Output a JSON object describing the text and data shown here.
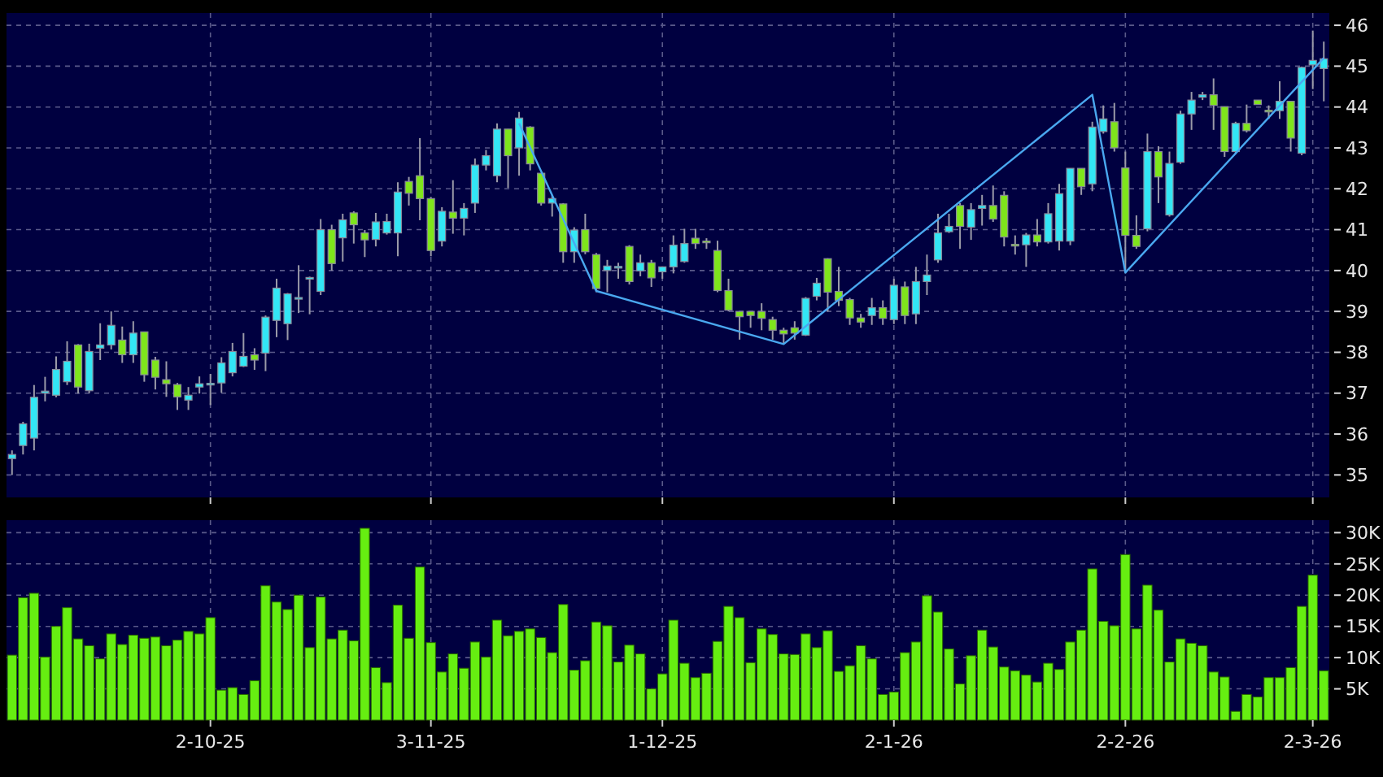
{
  "chart_data": [
    {
      "type": "candlestick",
      "categories": [
        null,
        null,
        null,
        null,
        null,
        null,
        null,
        null,
        null,
        null,
        null,
        null,
        null,
        null,
        null,
        null,
        null,
        null,
        null,
        null,
        null,
        null,
        null,
        null,
        null,
        null,
        null,
        null,
        null,
        null,
        null,
        null,
        null,
        null,
        null,
        null,
        null,
        null,
        null,
        null,
        null,
        null,
        null,
        null,
        null,
        null,
        null,
        null,
        null,
        null,
        null,
        null,
        null,
        null,
        null,
        null,
        null,
        null,
        null,
        null,
        null,
        null,
        null,
        null,
        null,
        null,
        null,
        null,
        null,
        null,
        null,
        null,
        null,
        null,
        null,
        null,
        null,
        null,
        null,
        null,
        null,
        null,
        null,
        null,
        null,
        null,
        null,
        null,
        null,
        null,
        null,
        null,
        null,
        null,
        null,
        null,
        null,
        null,
        null,
        null,
        null,
        null,
        null,
        null,
        null,
        null,
        null,
        null,
        null,
        null,
        null,
        null,
        null,
        null,
        null,
        null,
        null,
        null,
        null,
        null
      ],
      "ohlc": [
        [
          35.4,
          35.6,
          35.0,
          35.5
        ],
        [
          35.72,
          36.3,
          35.5,
          36.25
        ],
        [
          35.9,
          37.2,
          35.6,
          36.9
        ],
        [
          37.0,
          37.4,
          36.8,
          37.05
        ],
        [
          36.95,
          37.9,
          36.9,
          37.58
        ],
        [
          37.28,
          38.27,
          37.2,
          37.78
        ],
        [
          38.18,
          38.2,
          36.99,
          37.15
        ],
        [
          37.06,
          38.21,
          37.0,
          38.02
        ],
        [
          38.1,
          38.71,
          37.81,
          38.18
        ],
        [
          38.18,
          39.0,
          38.07,
          38.66
        ],
        [
          38.3,
          38.63,
          37.74,
          37.94
        ],
        [
          37.94,
          38.76,
          37.74,
          38.47
        ],
        [
          38.5,
          38.5,
          37.28,
          37.45
        ],
        [
          37.81,
          37.89,
          37.09,
          37.39
        ],
        [
          37.33,
          37.78,
          36.91,
          37.23
        ],
        [
          37.21,
          37.25,
          36.59,
          36.91
        ],
        [
          36.83,
          37.15,
          36.59,
          36.95
        ],
        [
          37.15,
          37.41,
          36.99,
          37.23
        ],
        [
          37.23,
          37.47,
          36.71,
          37.24
        ],
        [
          37.25,
          37.88,
          37.01,
          37.74
        ],
        [
          37.5,
          38.23,
          37.41,
          38.02
        ],
        [
          37.66,
          38.47,
          37.64,
          37.9
        ],
        [
          37.94,
          38.1,
          37.57,
          37.81
        ],
        [
          37.98,
          38.9,
          37.54,
          38.86
        ],
        [
          38.78,
          39.8,
          38.37,
          39.57
        ],
        [
          38.7,
          39.45,
          38.3,
          39.43
        ],
        [
          39.3,
          40.13,
          38.96,
          39.34
        ],
        [
          39.82,
          39.85,
          38.93,
          39.83
        ],
        [
          39.49,
          41.26,
          39.4,
          41.0
        ],
        [
          41.0,
          41.12,
          40.0,
          40.17
        ],
        [
          40.8,
          41.39,
          40.22,
          41.24
        ],
        [
          41.41,
          41.45,
          40.66,
          41.12
        ],
        [
          40.92,
          40.99,
          40.33,
          40.75
        ],
        [
          40.76,
          41.41,
          40.59,
          41.19
        ],
        [
          40.92,
          41.39,
          40.88,
          41.2
        ],
        [
          40.92,
          42.16,
          40.35,
          41.92
        ],
        [
          42.18,
          42.29,
          41.59,
          41.89
        ],
        [
          42.32,
          43.24,
          41.23,
          41.76
        ],
        [
          41.76,
          41.8,
          40.35,
          40.49
        ],
        [
          40.72,
          41.55,
          40.59,
          41.45
        ],
        [
          41.43,
          42.21,
          40.9,
          41.28
        ],
        [
          41.28,
          41.65,
          40.86,
          41.52
        ],
        [
          41.65,
          42.74,
          41.41,
          42.58
        ],
        [
          42.58,
          42.95,
          42.45,
          42.81
        ],
        [
          42.32,
          43.6,
          42.16,
          43.46
        ],
        [
          43.46,
          43.46,
          42.02,
          42.81
        ],
        [
          43.0,
          43.88,
          42.32,
          43.73
        ],
        [
          43.51,
          43.53,
          42.45,
          42.61
        ],
        [
          42.38,
          42.38,
          41.59,
          41.65
        ],
        [
          41.65,
          41.85,
          41.32,
          41.76
        ],
        [
          41.63,
          41.65,
          40.19,
          40.46
        ],
        [
          40.46,
          41.06,
          40.19,
          40.99
        ],
        [
          41.0,
          41.39,
          40.4,
          40.46
        ],
        [
          40.39,
          40.43,
          39.47,
          39.56
        ],
        [
          40.0,
          40.26,
          39.47,
          40.11
        ],
        [
          40.09,
          40.19,
          39.8,
          40.1
        ],
        [
          40.59,
          40.62,
          39.66,
          39.73
        ],
        [
          39.99,
          40.39,
          39.86,
          40.19
        ],
        [
          40.19,
          40.26,
          39.6,
          39.82
        ],
        [
          39.97,
          40.1,
          39.8,
          40.09
        ],
        [
          40.09,
          40.86,
          39.93,
          40.62
        ],
        [
          40.22,
          41.02,
          40.19,
          40.66
        ],
        [
          40.79,
          41.02,
          40.53,
          40.66
        ],
        [
          40.72,
          40.79,
          40.53,
          40.71
        ],
        [
          40.49,
          40.73,
          39.47,
          39.51
        ],
        [
          39.51,
          39.8,
          39.0,
          39.03
        ],
        [
          39.0,
          39.0,
          38.31,
          38.87
        ],
        [
          39.0,
          39.0,
          38.6,
          38.9
        ],
        [
          39.0,
          39.2,
          38.54,
          38.83
        ],
        [
          38.8,
          38.87,
          38.31,
          38.54
        ],
        [
          38.54,
          38.6,
          38.2,
          38.45
        ],
        [
          38.6,
          38.76,
          38.31,
          38.47
        ],
        [
          38.42,
          39.35,
          38.4,
          39.32
        ],
        [
          39.37,
          39.82,
          39.27,
          39.69
        ],
        [
          40.29,
          40.3,
          39.0,
          39.47
        ],
        [
          39.49,
          40.09,
          39.13,
          39.27
        ],
        [
          39.29,
          39.33,
          38.67,
          38.84
        ],
        [
          38.84,
          38.94,
          38.6,
          38.74
        ],
        [
          38.9,
          39.33,
          38.67,
          39.09
        ],
        [
          39.09,
          39.27,
          38.67,
          38.83
        ],
        [
          38.8,
          39.8,
          38.69,
          39.64
        ],
        [
          39.6,
          39.73,
          38.69,
          38.9
        ],
        [
          38.94,
          40.09,
          38.69,
          39.73
        ],
        [
          39.73,
          40.39,
          39.4,
          39.89
        ],
        [
          40.26,
          41.39,
          40.19,
          40.92
        ],
        [
          40.95,
          41.39,
          40.92,
          41.08
        ],
        [
          41.59,
          41.65,
          40.53,
          41.08
        ],
        [
          41.06,
          41.65,
          40.75,
          41.49
        ],
        [
          41.52,
          41.85,
          41.1,
          41.59
        ],
        [
          41.59,
          42.08,
          41.19,
          41.26
        ],
        [
          41.84,
          41.94,
          40.59,
          40.82
        ],
        [
          40.64,
          40.86,
          40.39,
          40.63
        ],
        [
          40.63,
          40.92,
          40.09,
          40.87
        ],
        [
          40.87,
          41.26,
          40.59,
          40.7
        ],
        [
          40.7,
          41.65,
          40.66,
          41.39
        ],
        [
          40.72,
          42.12,
          40.49,
          41.88
        ],
        [
          40.72,
          42.5,
          40.62,
          42.5
        ],
        [
          42.5,
          42.5,
          41.85,
          42.05
        ],
        [
          42.12,
          43.64,
          41.94,
          43.51
        ],
        [
          43.4,
          44.04,
          43.35,
          43.71
        ],
        [
          43.64,
          44.1,
          42.91,
          43.0
        ],
        [
          42.51,
          42.91,
          39.93,
          40.86
        ],
        [
          40.86,
          41.35,
          40.53,
          40.59
        ],
        [
          41.02,
          43.35,
          40.96,
          42.91
        ],
        [
          42.91,
          43.04,
          41.65,
          42.29
        ],
        [
          41.36,
          42.91,
          41.32,
          42.62
        ],
        [
          42.65,
          43.91,
          42.61,
          43.83
        ],
        [
          43.83,
          44.37,
          43.44,
          44.17
        ],
        [
          44.24,
          44.37,
          44.17,
          44.3
        ],
        [
          44.3,
          44.7,
          43.44,
          44.04
        ],
        [
          44.01,
          44.01,
          42.78,
          42.91
        ],
        [
          42.91,
          43.64,
          42.85,
          43.6
        ],
        [
          43.6,
          44.06,
          43.38,
          43.42
        ],
        [
          44.17,
          44.17,
          44.06,
          44.06
        ],
        [
          43.92,
          44.04,
          43.71,
          43.91
        ],
        [
          43.91,
          44.63,
          43.71,
          44.14
        ],
        [
          44.14,
          44.14,
          42.91,
          43.24
        ],
        [
          42.87,
          44.99,
          42.82,
          44.97
        ],
        [
          45.03,
          45.87,
          44.44,
          45.14
        ],
        [
          44.94,
          45.6,
          44.14,
          45.18
        ]
      ],
      "colors": [
        "#33e6f5",
        "#33e6f5",
        "#33e6f5",
        "#33e6f5",
        "#33e6f5",
        "#33e6f5",
        "#7fe51c",
        "#33e6f5",
        "#33e6f5",
        "#33e6f5",
        "#7fe51c",
        "#33e6f5",
        "#7fe51c",
        "#7fe51c",
        "#7fe51c",
        "#7fe51c",
        "#33e6f5",
        "#33e6f5",
        "#33e6f5",
        "#33e6f5",
        "#33e6f5",
        "#33e6f5",
        "#7fe51c",
        "#33e6f5",
        "#33e6f5",
        "#33e6f5",
        "#33e6f5",
        "#33e6f5",
        "#33e6f5",
        "#7fe51c",
        "#33e6f5",
        "#7fe51c",
        "#7fe51c",
        "#33e6f5",
        "#33e6f5",
        "#33e6f5",
        "#7fe51c",
        "#7fe51c",
        "#7fe51c",
        "#33e6f5",
        "#7fe51c",
        "#33e6f5",
        "#33e6f5",
        "#33e6f5",
        "#33e6f5",
        "#7fe51c",
        "#33e6f5",
        "#7fe51c",
        "#7fe51c",
        "#33e6f5",
        "#7fe51c",
        "#33e6f5",
        "#7fe51c",
        "#7fe51c",
        "#33e6f5",
        "#33e6f5",
        "#7fe51c",
        "#33e6f5",
        "#7fe51c",
        "#33e6f5",
        "#33e6f5",
        "#33e6f5",
        "#7fe51c",
        "#7fe51c",
        "#7fe51c",
        "#7fe51c",
        "#7fe51c",
        "#7fe51c",
        "#7fe51c",
        "#7fe51c",
        "#7fe51c",
        "#7fe51c",
        "#33e6f5",
        "#33e6f5",
        "#7fe51c",
        "#7fe51c",
        "#7fe51c",
        "#7fe51c",
        "#33e6f5",
        "#7fe51c",
        "#33e6f5",
        "#7fe51c",
        "#33e6f5",
        "#33e6f5",
        "#33e6f5",
        "#33e6f5",
        "#7fe51c",
        "#33e6f5",
        "#33e6f5",
        "#7fe51c",
        "#7fe51c",
        "#7fe51c",
        "#33e6f5",
        "#7fe51c",
        "#33e6f5",
        "#33e6f5",
        "#33e6f5",
        "#7fe51c",
        "#33e6f5",
        "#33e6f5",
        "#7fe51c",
        "#7fe51c",
        "#7fe51c",
        "#33e6f5",
        "#7fe51c",
        "#33e6f5",
        "#33e6f5",
        "#33e6f5",
        "#33e6f5",
        "#7fe51c",
        "#7fe51c",
        "#33e6f5",
        "#7fe51c",
        "#7fe51c",
        "#7fe51c",
        "#33e6f5",
        "#7fe51c",
        "#33e6f5",
        "#33e6f5",
        "#33e6f5"
      ],
      "series": [
        {
          "type": "line",
          "color": "#4aa8f0",
          "values": [
            null,
            null,
            null,
            null,
            null,
            null,
            null,
            null,
            null,
            null,
            null,
            null,
            null,
            null,
            null,
            null,
            null,
            null,
            null,
            null,
            null,
            null,
            null,
            null,
            null,
            null,
            null,
            null,
            null,
            null,
            null,
            null,
            null,
            null,
            null,
            null,
            null,
            null,
            null,
            null,
            null,
            null,
            null,
            null,
            null,
            null,
            43.6,
            null,
            null,
            null,
            null,
            null,
            null,
            39.5,
            null,
            null,
            null,
            null,
            null,
            null,
            null,
            null,
            null,
            null,
            null,
            null,
            null,
            null,
            null,
            null,
            38.2,
            null,
            null,
            null,
            null,
            null,
            null,
            null,
            null,
            null,
            null,
            null,
            null,
            null,
            null,
            null,
            null,
            null,
            null,
            null,
            null,
            null,
            null,
            null,
            null,
            null,
            null,
            null,
            44.3,
            null,
            null,
            39.95,
            null,
            null,
            null,
            null,
            null,
            null,
            null,
            null,
            null,
            null,
            null,
            null,
            null,
            null,
            null,
            null,
            null,
            45.2
          ]
        }
      ],
      "ylim": [
        34.45,
        46.3
      ],
      "yticks": [
        35,
        36,
        37,
        38,
        39,
        40,
        41,
        42,
        43,
        44,
        45,
        46
      ],
      "grid": true
    },
    {
      "type": "bar",
      "color": "#66ee11",
      "categories": [
        null,
        null,
        null,
        null,
        null,
        null,
        null,
        null,
        null,
        null,
        null,
        null,
        null,
        null,
        null,
        null,
        null,
        null,
        "2-10-25",
        null,
        null,
        null,
        null,
        null,
        null,
        null,
        null,
        null,
        null,
        null,
        null,
        null,
        null,
        null,
        null,
        null,
        null,
        null,
        "3-11-25",
        null,
        null,
        null,
        null,
        null,
        null,
        null,
        null,
        null,
        null,
        null,
        null,
        null,
        null,
        null,
        null,
        null,
        null,
        null,
        null,
        "1-12-25",
        null,
        null,
        null,
        null,
        null,
        null,
        null,
        null,
        null,
        null,
        null,
        null,
        null,
        null,
        null,
        null,
        null,
        null,
        null,
        null,
        "2-1-26",
        null,
        null,
        null,
        null,
        null,
        null,
        null,
        null,
        null,
        null,
        null,
        null,
        null,
        null,
        null,
        null,
        null,
        null,
        null,
        null,
        "2-2-26",
        null,
        null,
        null,
        null,
        null,
        null,
        null,
        null,
        null,
        null,
        null,
        null,
        null,
        null,
        null,
        null,
        "2-3-26",
        null
      ],
      "values": [
        10.4,
        19.6,
        20.3,
        10.1,
        15.0,
        18.0,
        13.0,
        11.9,
        9.8,
        13.8,
        12.1,
        13.6,
        13.1,
        13.3,
        11.9,
        12.8,
        14.2,
        13.8,
        16.4,
        4.8,
        5.2,
        4.1,
        6.3,
        21.5,
        18.9,
        17.7,
        20.0,
        11.6,
        19.7,
        13.0,
        14.4,
        12.7,
        30.7,
        8.4,
        6.0,
        18.4,
        13.1,
        24.5,
        12.4,
        7.7,
        10.6,
        8.3,
        12.5,
        10.1,
        16.0,
        13.5,
        14.2,
        14.6,
        13.2,
        10.8,
        18.5,
        8.0,
        9.5,
        15.7,
        15.1,
        9.3,
        12.0,
        10.6,
        5.0,
        7.4,
        16.0,
        9.1,
        6.8,
        7.5,
        12.6,
        18.2,
        16.4,
        9.2,
        14.6,
        13.7,
        10.6,
        10.5,
        13.8,
        11.6,
        14.3,
        7.8,
        8.7,
        11.9,
        9.8,
        4.1,
        4.5,
        10.8,
        12.5,
        19.9,
        17.3,
        11.4,
        5.8,
        10.3,
        14.4,
        11.7,
        8.5,
        7.9,
        7.2,
        6.1,
        9.1,
        8.1,
        12.5,
        14.4,
        24.2,
        15.8,
        15.1,
        26.5,
        14.6,
        21.6,
        17.6,
        9.3,
        13.0,
        12.3,
        11.9,
        7.7,
        6.9,
        1.4,
        4.1,
        3.7,
        6.8,
        6.8,
        8.4,
        18.2,
        23.2,
        7.9
      ],
      "ylim": [
        0,
        32
      ],
      "yticks": [
        {
          "value": 5,
          "label": "5K"
        },
        {
          "value": 10,
          "label": "10K"
        },
        {
          "value": 15,
          "label": "15K"
        },
        {
          "value": 20,
          "label": "20K"
        },
        {
          "value": 25,
          "label": "25K"
        },
        {
          "value": 30,
          "label": "30K"
        }
      ],
      "grid": true
    }
  ]
}
